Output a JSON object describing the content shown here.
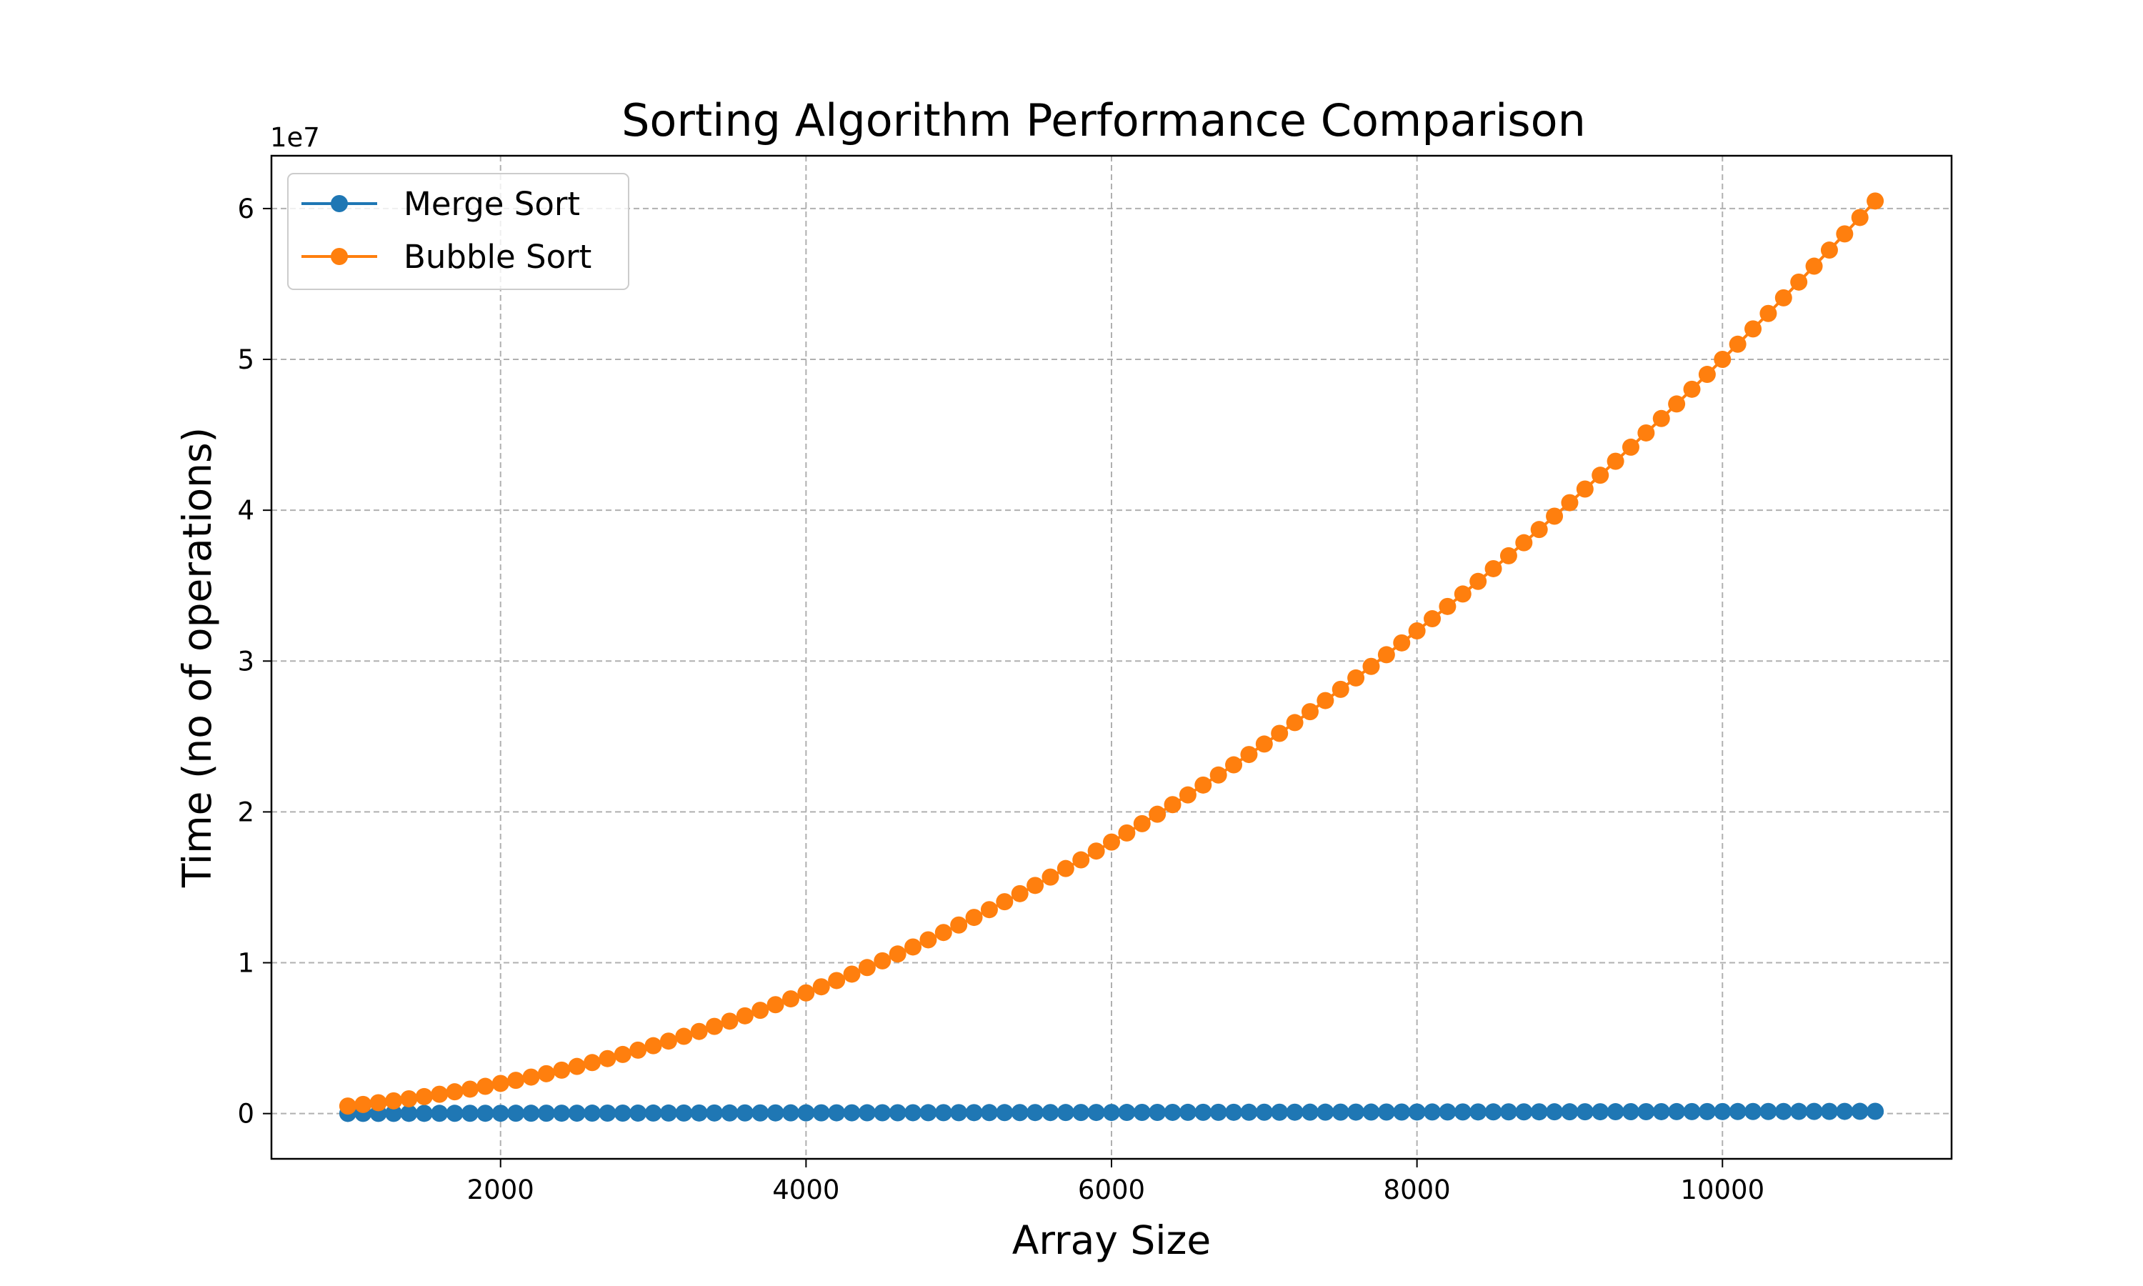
{
  "chart_data": {
    "type": "line",
    "title": "Sorting Algorithm Performance Comparison",
    "xlabel": "Array Size",
    "ylabel": "Time (no of operations)",
    "y_exponent_label": "1e7",
    "xlim": [
      500,
      11500
    ],
    "ylim": [
      -3000000,
      63500000
    ],
    "x_ticks": [
      2000,
      4000,
      6000,
      8000,
      10000
    ],
    "x_tick_labels": [
      "2000",
      "4000",
      "6000",
      "8000",
      "10000"
    ],
    "y_ticks": [
      0,
      10000000,
      20000000,
      30000000,
      40000000,
      50000000,
      60000000
    ],
    "y_tick_labels": [
      "0",
      "1",
      "2",
      "3",
      "4",
      "5",
      "6"
    ],
    "grid": true,
    "legend_position": "top-left",
    "x": [
      1000,
      1100,
      1200,
      1300,
      1400,
      1500,
      1600,
      1700,
      1800,
      1900,
      2000,
      2100,
      2200,
      2300,
      2400,
      2500,
      2600,
      2700,
      2800,
      2900,
      3000,
      3100,
      3200,
      3300,
      3400,
      3500,
      3600,
      3700,
      3800,
      3900,
      4000,
      4100,
      4200,
      4300,
      4400,
      4500,
      4600,
      4700,
      4800,
      4900,
      5000,
      5100,
      5200,
      5300,
      5400,
      5500,
      5600,
      5700,
      5800,
      5900,
      6000,
      6100,
      6200,
      6300,
      6400,
      6500,
      6600,
      6700,
      6800,
      6900,
      7000,
      7100,
      7200,
      7300,
      7400,
      7500,
      7600,
      7700,
      7800,
      7900,
      8000,
      8100,
      8200,
      8300,
      8400,
      8500,
      8600,
      8700,
      8800,
      8900,
      9000,
      9100,
      9200,
      9300,
      9400,
      9500,
      9600,
      9700,
      9800,
      9900,
      10000,
      10100,
      10200,
      10300,
      10400,
      10500,
      10600,
      10700,
      10800,
      10900,
      11000
    ],
    "series": [
      {
        "name": "Merge Sort",
        "color": "#1f77b4",
        "values": [
          9966,
          11104,
          12282,
          13485,
          14632,
          15826,
          17034,
          18282,
          19489,
          20723,
          21932,
          23153,
          24399,
          25724,
          26970,
          28219,
          29470,
          30735,
          32005,
          33283,
          34575,
          35870,
          37167,
          38467,
          39805,
          41150,
          42490,
          43820,
          45160,
          46490,
          47840,
          49180,
          50530,
          51880,
          53240,
          54600,
          55960,
          57330,
          58700,
          60080,
          61440,
          62830,
          64210,
          65600,
          66990,
          68390,
          69780,
          71190,
          72590,
          73990,
          75410,
          76830,
          78250,
          79670,
          81090,
          82520,
          83950,
          85380,
          86820,
          88250,
          89690,
          91140,
          92590,
          94040,
          95490,
          96940,
          98400,
          99860,
          101320,
          102780,
          104250,
          105720,
          107190,
          108670,
          110140,
          111620,
          113100,
          114590,
          116070,
          117560,
          119050,
          120540,
          122040,
          123530,
          125030,
          126540,
          128040,
          129550,
          131050,
          132560,
          134080,
          135590,
          137110,
          138630,
          140150,
          141670,
          143200,
          144720,
          146250,
          147780,
          149310
        ]
      },
      {
        "name": "Bubble Sort",
        "color": "#ff7f0e",
        "values": [
          500000,
          605000,
          720000,
          845000,
          980000,
          1125000,
          1280000,
          1445000,
          1620000,
          1805000,
          2000000,
          2205000,
          2420000,
          2645000,
          2880000,
          3125000,
          3380000,
          3645000,
          3920000,
          4205000,
          4500000,
          4805000,
          5120000,
          5445000,
          5780000,
          6125000,
          6480000,
          6845000,
          7220000,
          7605000,
          8000000,
          8405000,
          8820000,
          9245000,
          9680000,
          10125000,
          10580000,
          11045000,
          11520000,
          12005000,
          12500000,
          13005000,
          13520000,
          14045000,
          14580000,
          15125000,
          15680000,
          16245000,
          16820000,
          17405000,
          18000000,
          18605000,
          19220000,
          19845000,
          20480000,
          21125000,
          21780000,
          22445000,
          23120000,
          23805000,
          24500000,
          25205000,
          25920000,
          26645000,
          27380000,
          28125000,
          28880000,
          29645000,
          30420000,
          31205000,
          32000000,
          32805000,
          33620000,
          34445000,
          35280000,
          36125000,
          36980000,
          37845000,
          38720000,
          39605000,
          40500000,
          41405000,
          42320000,
          43245000,
          44180000,
          45125000,
          46080000,
          47045000,
          48020000,
          49005000,
          50000000,
          51005000,
          52020000,
          53045000,
          54080000,
          55125000,
          56180000,
          57245000,
          58320000,
          59405000,
          60500000
        ]
      }
    ]
  }
}
